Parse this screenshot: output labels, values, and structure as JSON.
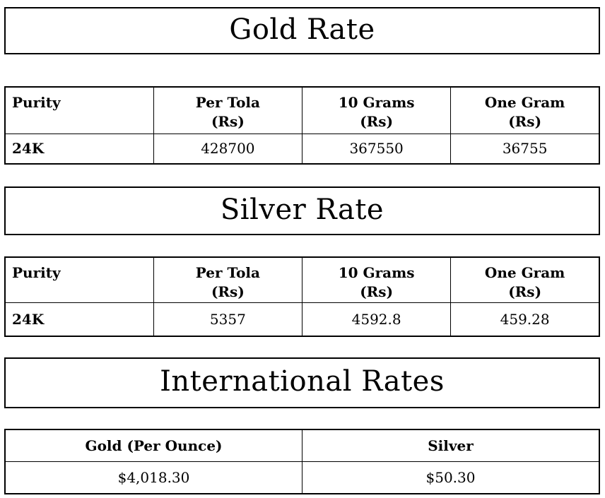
{
  "page": {
    "background_color": "#ffffff",
    "text_color": "#000000",
    "border_color": "#000000"
  },
  "gold": {
    "title": "Gold Rate",
    "col_headers": [
      {
        "line1": "Purity"
      },
      {
        "line1": "Per Tola",
        "line2": "(Rs)"
      },
      {
        "line1": "10 Grams",
        "line2": "(Rs)"
      },
      {
        "line1": "One Gram",
        "line2": "(Rs)"
      }
    ],
    "row": {
      "purity": "24K",
      "per_tola": "428700",
      "ten_grams": "367550",
      "one_gram": "36755"
    }
  },
  "silver": {
    "title": "Silver Rate",
    "col_headers": [
      {
        "line1": "Purity"
      },
      {
        "line1": "Per Tola",
        "line2": "(Rs)"
      },
      {
        "line1": "10 Grams",
        "line2": "(Rs)"
      },
      {
        "line1": "One Gram",
        "line2": "(Rs)"
      }
    ],
    "row": {
      "purity": "24K",
      "per_tola": "5357",
      "ten_grams": "4592.8",
      "one_gram": "459.28"
    }
  },
  "international": {
    "title": "International Rates",
    "col_headers": [
      {
        "label": "Gold (Per Ounce)"
      },
      {
        "label": "Silver"
      }
    ],
    "row": {
      "gold": "$4,018.30",
      "silver": "$50.30"
    }
  }
}
